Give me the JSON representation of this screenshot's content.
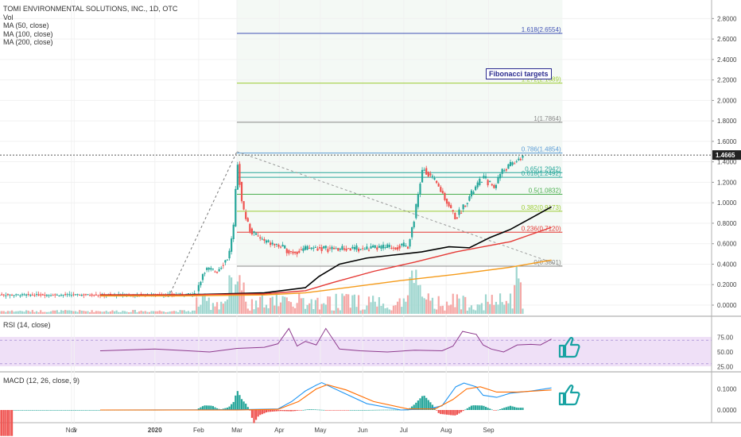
{
  "header": {
    "title": "TOMI ENVIRONMENTAL SOLUTIONS, INC., 1D, OTC",
    "indicators": [
      "Vol",
      "MA (50, close)",
      "MA (100, close)",
      "MA (200, close)"
    ]
  },
  "rsi_label": "RSI (14, close)",
  "macd_label": "MACD (12, 26, close, 9)",
  "annotation": "Fibonacci targets",
  "colors": {
    "up": "#26a69a",
    "down": "#ef5350",
    "ma50": "#000000",
    "ma100": "#e53935",
    "ma200": "#f59b1a",
    "rsi": "#8e3b8e",
    "rsi_band": "#efe0f7",
    "macd": "#2196f3",
    "signal": "#ff6d00",
    "thumb": "#17a2a2"
  },
  "chart_data": [
    {
      "type": "candlestick",
      "title": "TOMI ENVIRONMENTAL SOLUTIONS, INC., 1D, OTC",
      "x_ticks": [
        "Nov",
        "3",
        "2020",
        "Feb",
        "Mar",
        "Apr",
        "May",
        "Jun",
        "Jul",
        "Aug",
        "Sep"
      ],
      "y_ticks": [
        "2.8000",
        "2.6000",
        "2.4000",
        "2.2000",
        "2.0000",
        "1.8000",
        "1.6000",
        "1.4000",
        "1.2000",
        "1.0000",
        "0.8000",
        "0.6000",
        "0.4000",
        "0.2000",
        "0.0000"
      ],
      "ylim": [
        -0.05,
        2.85
      ],
      "last_price": "1.4665",
      "fibonacci": [
        {
          "label": "1.618(2.6554)",
          "value": 2.6554,
          "color": "#3f51b5"
        },
        {
          "label": "1.272(2.1689)",
          "value": 2.1689,
          "color": "#9ccc34"
        },
        {
          "label": "1(1.7864)",
          "value": 1.7864,
          "color": "#888888"
        },
        {
          "label": "0.786(1.4854)",
          "value": 1.4854,
          "color": "#5b9bd5"
        },
        {
          "label": "0.65(1.2942)",
          "value": 1.2942,
          "color": "#26a69a"
        },
        {
          "label": "0.618(1.2492)",
          "value": 1.2492,
          "color": "#26a69a"
        },
        {
          "label": "0.5(1.0832)",
          "value": 1.0832,
          "color": "#4caf50"
        },
        {
          "label": "0.382(0.9173)",
          "value": 0.9173,
          "color": "#9ccc34"
        },
        {
          "label": "0.236(0.7120)",
          "value": 0.712,
          "color": "#e53935"
        },
        {
          "label": "0(0.3801)",
          "value": 0.3801,
          "color": "#888888"
        }
      ],
      "series": [
        {
          "name": "MA (50, close)",
          "x": [
            -100,
            -40,
            20,
            50,
            60,
            75,
            95,
            115,
            135,
            155,
            170,
            185,
            200,
            215,
            230
          ],
          "y": [
            0.1,
            0.1,
            0.12,
            0.17,
            0.28,
            0.4,
            0.46,
            0.49,
            0.52,
            0.57,
            0.56,
            0.66,
            0.74,
            0.85,
            0.96
          ]
        },
        {
          "name": "MA (100, close)",
          "x": [
            -100,
            -40,
            20,
            50,
            70,
            100,
            130,
            160,
            180,
            200,
            215,
            230
          ],
          "y": [
            0.1,
            0.1,
            0.11,
            0.14,
            0.22,
            0.33,
            0.42,
            0.52,
            0.57,
            0.62,
            0.69,
            0.76
          ]
        },
        {
          "name": "MA (200, close)",
          "x": [
            -100,
            -40,
            20,
            50,
            80,
            120,
            160,
            200,
            230
          ],
          "y": [
            0.09,
            0.09,
            0.1,
            0.12,
            0.17,
            0.24,
            0.3,
            0.37,
            0.44
          ]
        }
      ]
    },
    {
      "type": "line",
      "title": "RSI (14, close)",
      "y_ticks": [
        "75.00",
        "50.00",
        "25.00"
      ],
      "band": [
        30,
        70
      ],
      "series": [
        {
          "name": "RSI (14, close)",
          "x": [
            -100,
            -60,
            -20,
            0,
            20,
            30,
            38,
            44,
            50,
            58,
            65,
            75,
            90,
            110,
            130,
            150,
            158,
            165,
            175,
            180,
            186,
            195,
            205,
            215,
            222,
            230
          ],
          "y": [
            52,
            55,
            50,
            56,
            58,
            64,
            90,
            60,
            68,
            62,
            90,
            55,
            52,
            50,
            53,
            52,
            60,
            85,
            80,
            62,
            55,
            50,
            62,
            63,
            62,
            72
          ]
        }
      ]
    },
    {
      "type": "bar",
      "title": "MACD (12, 26, close, 9)",
      "y_ticks": [
        "0.1000",
        "0.0000"
      ],
      "series": [
        {
          "name": "MACD",
          "x": [
            -100,
            0,
            30,
            40,
            50,
            58,
            62,
            75,
            95,
            120,
            140,
            150,
            160,
            166,
            175,
            180,
            190,
            200,
            215,
            230
          ],
          "y": [
            0,
            0.001,
            0.005,
            0.04,
            0.09,
            0.118,
            0.13,
            0.09,
            0.03,
            0.0,
            0.005,
            0.02,
            0.11,
            0.128,
            0.11,
            0.07,
            0.06,
            0.08,
            0.09,
            0.105
          ]
        },
        {
          "name": "Signal",
          "x": [
            -100,
            0,
            30,
            45,
            58,
            66,
            80,
            100,
            125,
            145,
            158,
            168,
            178,
            190,
            205,
            230
          ],
          "y": [
            0,
            0.0,
            0.003,
            0.04,
            0.1,
            0.12,
            0.095,
            0.04,
            0.005,
            0.005,
            0.05,
            0.1,
            0.11,
            0.085,
            0.085,
            0.095
          ]
        }
      ]
    }
  ]
}
